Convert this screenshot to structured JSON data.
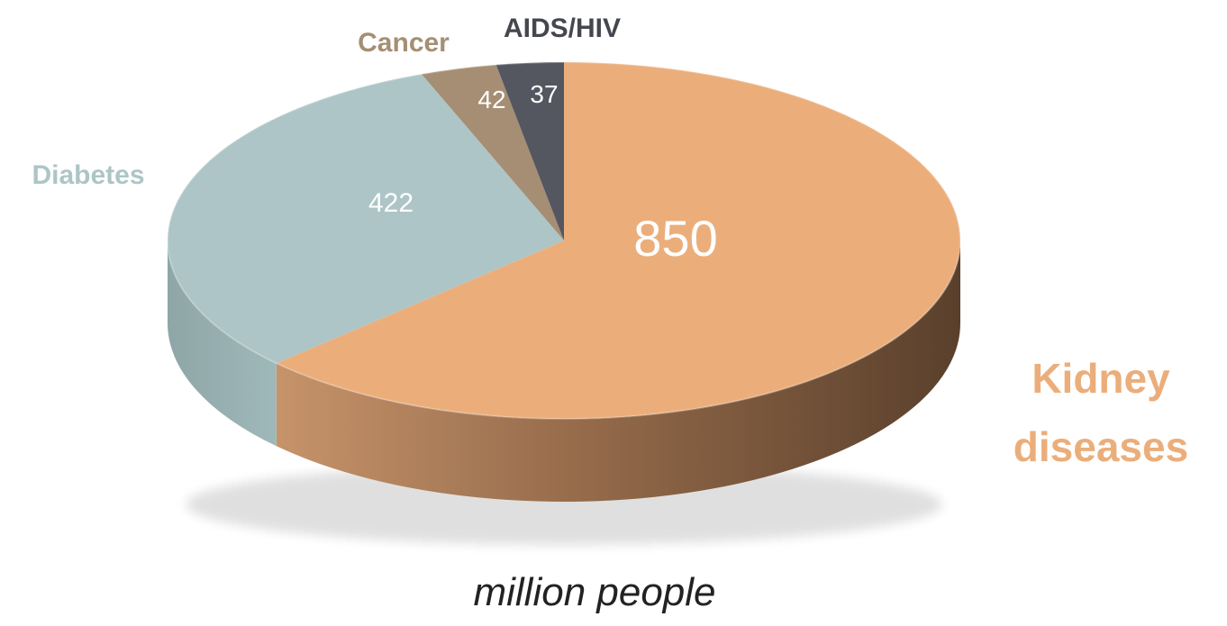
{
  "chart_data": {
    "type": "pie",
    "title": "",
    "unit_caption": "million people",
    "categories": [
      "Kidney diseases",
      "Diabetes",
      "Cancer",
      "AIDS/HIV"
    ],
    "values": [
      850,
      422,
      42,
      37
    ],
    "slices": [
      {
        "label": "Kidney diseases",
        "value": 850,
        "display_value": "850",
        "color": "#ebae7b"
      },
      {
        "label": "Diabetes",
        "value": 422,
        "display_value": "422",
        "color": "#adc5c6"
      },
      {
        "label": "Cancer",
        "value": 42,
        "display_value": "42",
        "color": "#a58e73"
      },
      {
        "label": "AIDS/HIV",
        "value": 37,
        "display_value": "37",
        "color": "#545660"
      }
    ],
    "style": "3d"
  }
}
